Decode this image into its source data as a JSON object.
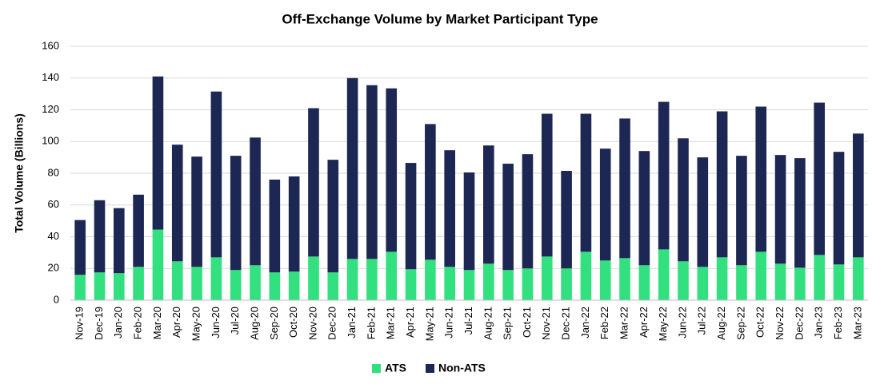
{
  "chart_data": {
    "type": "stacked_bar",
    "title": "Off-Exchange Volume by Market Participant Type",
    "y_label": "Total Volume (Billions)",
    "categories": [
      "Nov-19",
      "Dec-19",
      "Jan-20",
      "Feb-20",
      "Mar-20",
      "Apr-20",
      "May-20",
      "Jun-20",
      "Jul-20",
      "Aug-20",
      "Sep-20",
      "Oct-20",
      "Nov-20",
      "Dec-20",
      "Jan-21",
      "Feb-21",
      "Mar-21",
      "Apr-21",
      "May-21",
      "Jun-21",
      "Jul-21",
      "Aug-21",
      "Sep-21",
      "Oct-21",
      "Nov-21",
      "Dec-21",
      "Jan-22",
      "Feb-22",
      "Mar-22",
      "Apr-22",
      "May-22",
      "Jun-22",
      "Jul-22",
      "Aug-22",
      "Sep-22",
      "Oct-22",
      "Nov-22",
      "Dec-22",
      "Jan-23",
      "Feb-23",
      "Mar-23"
    ],
    "series": [
      {
        "name": "ATS",
        "color": "#33e07f",
        "values": [
          16,
          17.5,
          17,
          21,
          44.5,
          24.5,
          21,
          27,
          19,
          22,
          17.5,
          18,
          27.5,
          17.5,
          26,
          26,
          30.5,
          19.5,
          25.5,
          21,
          19,
          23,
          19,
          20,
          27.5,
          20,
          30.5,
          25,
          26.5,
          22,
          32,
          24.5,
          21,
          27,
          22,
          30.5,
          23,
          20.5,
          28.5,
          22.5,
          27
        ]
      },
      {
        "name": "Non-ATS",
        "color": "#1d2753",
        "values": [
          34.5,
          45.5,
          41,
          45.5,
          96.5,
          73.5,
          69.5,
          104.5,
          72,
          80.5,
          58.5,
          60,
          93.5,
          71,
          114,
          109.5,
          103,
          67,
          85.5,
          73.5,
          61.5,
          74.5,
          67,
          72,
          90,
          61.5,
          87,
          70.5,
          88,
          72,
          93,
          77.5,
          69,
          92,
          69,
          91.5,
          68.5,
          69,
          96,
          71,
          78
        ]
      }
    ],
    "ylim": [
      0,
      160
    ],
    "yticks": [
      0,
      20,
      40,
      60,
      80,
      100,
      120,
      140,
      160
    ],
    "grid": true,
    "legend": "bottom"
  }
}
